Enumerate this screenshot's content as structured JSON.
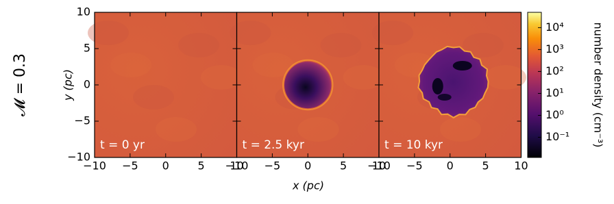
{
  "chart_data": {
    "type": "image-panels",
    "row_label": "𝓜 = 0.3",
    "xlabel": "x (pc)",
    "ylabel": "y (pc)",
    "panels": [
      {
        "label": "t = 0 yr"
      },
      {
        "label": "t = 2.5 kyr"
      },
      {
        "label": "t = 10 kyr"
      }
    ],
    "xlim": [
      -10,
      10
    ],
    "ylim": [
      -10,
      10
    ],
    "xticks": [
      {
        "value": -10,
        "label": "−10"
      },
      {
        "value": -5,
        "label": "−5"
      },
      0,
      5,
      10
    ],
    "yticks": [
      {
        "value": -10,
        "label": "−10"
      },
      {
        "value": -5,
        "label": "−5"
      },
      0,
      5,
      10
    ],
    "colorbar": {
      "label": "number density (cm⁻³)",
      "scale": "log",
      "lim": [
        0.012,
        50000
      ],
      "ticks": [
        {
          "value": 0.1,
          "label": "10⁻¹"
        },
        {
          "value": 1,
          "label": "10⁰"
        },
        {
          "value": 10,
          "label": "10¹"
        },
        {
          "value": 100,
          "label": "10²"
        },
        {
          "value": 1000,
          "label": "10³"
        },
        {
          "value": 10000,
          "label": "10⁴"
        }
      ]
    }
  }
}
